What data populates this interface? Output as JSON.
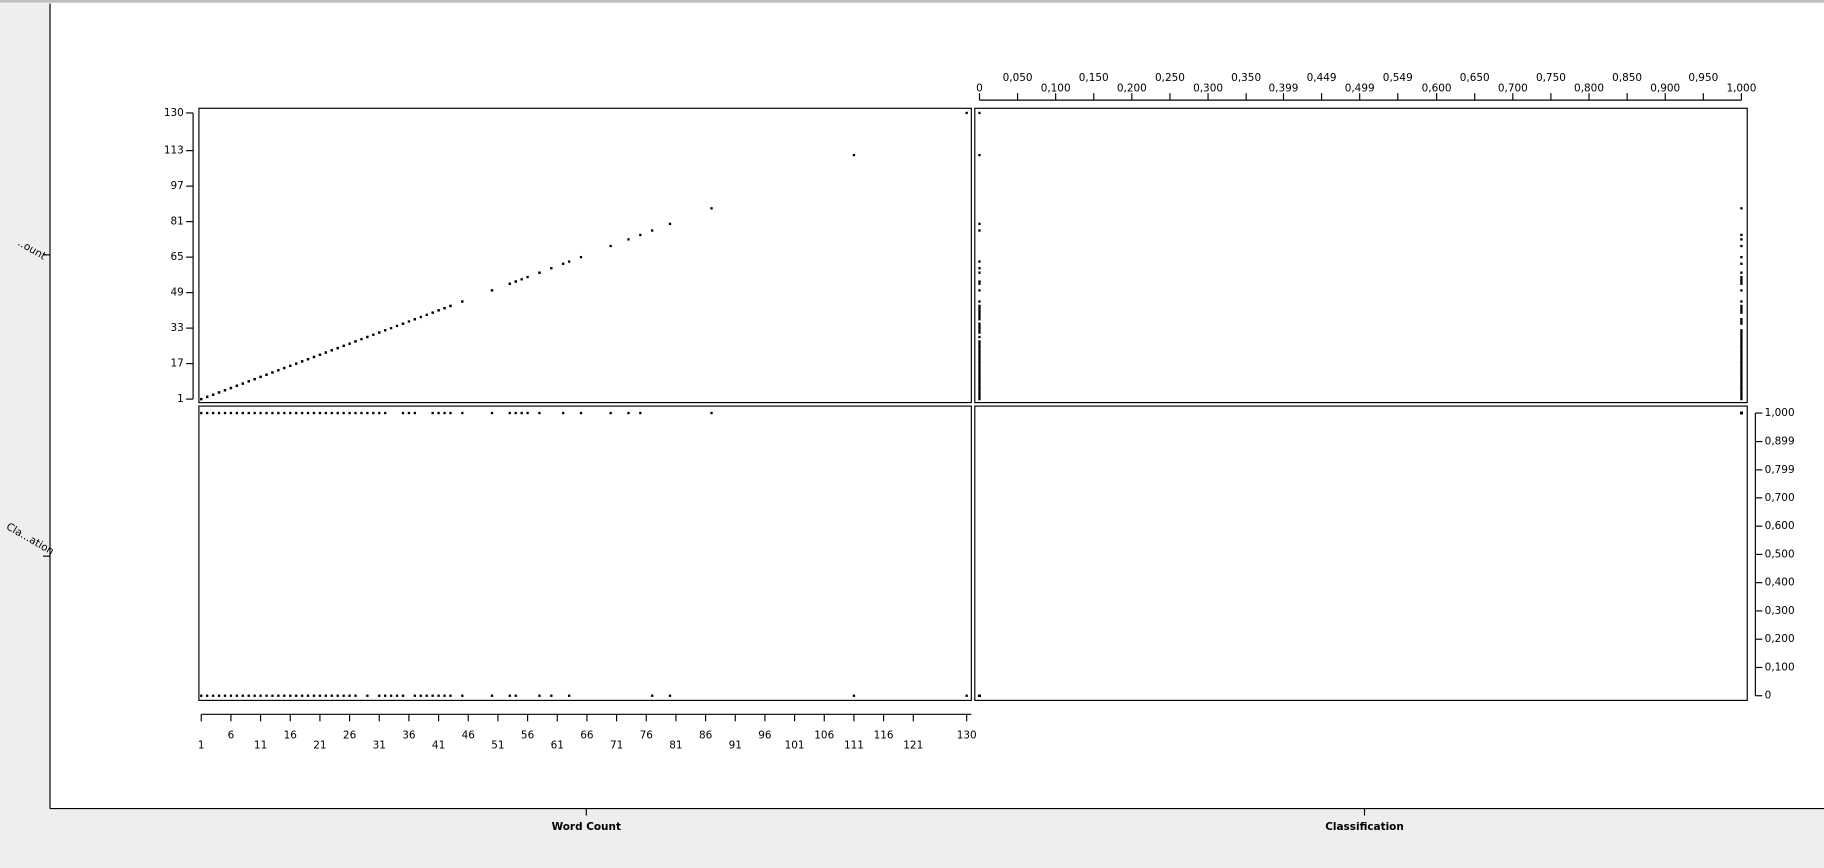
{
  "chart_data": {
    "type": "scatter",
    "variables": [
      {
        "name": "Word Count",
        "row_label": "..ount",
        "lim": [
          1,
          130
        ],
        "xticks": [
          1,
          6,
          11,
          16,
          21,
          26,
          31,
          36,
          41,
          46,
          51,
          56,
          61,
          66,
          71,
          76,
          81,
          86,
          91,
          96,
          101,
          106,
          111,
          116,
          121,
          130
        ],
        "yticks": [
          1,
          17,
          33,
          49,
          65,
          81,
          97,
          113,
          130
        ],
        "values": [
          1,
          2,
          3,
          4,
          5,
          6,
          7,
          8,
          9,
          10,
          11,
          12,
          13,
          14,
          15,
          16,
          17,
          18,
          19,
          20,
          21,
          22,
          23,
          24,
          25,
          26,
          27,
          28,
          29,
          30,
          31,
          32,
          35,
          36,
          37,
          40,
          41,
          42,
          43,
          45,
          50,
          53,
          54,
          55,
          56,
          58,
          62,
          65,
          70,
          73,
          75,
          87,
          1,
          2,
          3,
          4,
          5,
          6,
          7,
          8,
          9,
          10,
          11,
          12,
          13,
          14,
          15,
          16,
          17,
          18,
          19,
          20,
          21,
          22,
          23,
          24,
          25,
          26,
          27,
          29,
          31,
          32,
          33,
          34,
          35,
          37,
          38,
          39,
          40,
          41,
          42,
          43,
          45,
          50,
          53,
          54,
          58,
          60,
          63,
          77,
          80,
          111,
          130
        ]
      },
      {
        "name": "Classification",
        "row_label": "Cla...ation",
        "lim": [
          0,
          1
        ],
        "xticks": [
          0,
          {
            "value": 0.05,
            "label": "0,050"
          },
          {
            "value": 0.1,
            "label": "0,100"
          },
          {
            "value": 0.15,
            "label": "0,150"
          },
          {
            "value": 0.2,
            "label": "0,200"
          },
          {
            "value": 0.25,
            "label": "0,250"
          },
          {
            "value": 0.3,
            "label": "0,300"
          },
          {
            "value": 0.35,
            "label": "0,350"
          },
          {
            "value": 0.399,
            "label": "0,399"
          },
          {
            "value": 0.449,
            "label": "0,449"
          },
          {
            "value": 0.499,
            "label": "0,499"
          },
          {
            "value": 0.549,
            "label": "0,549"
          },
          {
            "value": 0.6,
            "label": "0,600"
          },
          {
            "value": 0.65,
            "label": "0,650"
          },
          {
            "value": 0.7,
            "label": "0,700"
          },
          {
            "value": 0.75,
            "label": "0,750"
          },
          {
            "value": 0.8,
            "label": "0,800"
          },
          {
            "value": 0.85,
            "label": "0,850"
          },
          {
            "value": 0.9,
            "label": "0,900"
          },
          {
            "value": 0.95,
            "label": "0,950"
          },
          {
            "value": 1,
            "label": "1,000"
          }
        ],
        "yticks": [
          {
            "value": 1,
            "label": "1,000"
          },
          {
            "value": 0.899,
            "label": "0,899"
          },
          {
            "value": 0.799,
            "label": "0,799"
          },
          {
            "value": 0.7,
            "label": "0,700"
          },
          {
            "value": 0.6,
            "label": "0,600"
          },
          {
            "value": 0.5,
            "label": "0,500"
          },
          {
            "value": 0.4,
            "label": "0,400"
          },
          {
            "value": 0.3,
            "label": "0,300"
          },
          {
            "value": 0.2,
            "label": "0,200"
          },
          {
            "value": 0.1,
            "label": "0,100"
          },
          0
        ],
        "values": [
          1,
          1,
          1,
          1,
          1,
          1,
          1,
          1,
          1,
          1,
          1,
          1,
          1,
          1,
          1,
          1,
          1,
          1,
          1,
          1,
          1,
          1,
          1,
          1,
          1,
          1,
          1,
          1,
          1,
          1,
          1,
          1,
          1,
          1,
          1,
          1,
          1,
          1,
          1,
          1,
          1,
          1,
          1,
          1,
          1,
          1,
          1,
          1,
          1,
          1,
          1,
          1,
          0,
          0,
          0,
          0,
          0,
          0,
          0,
          0,
          0,
          0,
          0,
          0,
          0,
          0,
          0,
          0,
          0,
          0,
          0,
          0,
          0,
          0,
          0,
          0,
          0,
          0,
          0,
          0,
          0,
          0,
          0,
          0,
          0,
          0,
          0,
          0,
          0,
          0,
          0,
          0,
          0,
          0,
          0,
          0,
          0,
          0,
          0,
          0,
          0,
          0,
          0
        ]
      }
    ]
  }
}
